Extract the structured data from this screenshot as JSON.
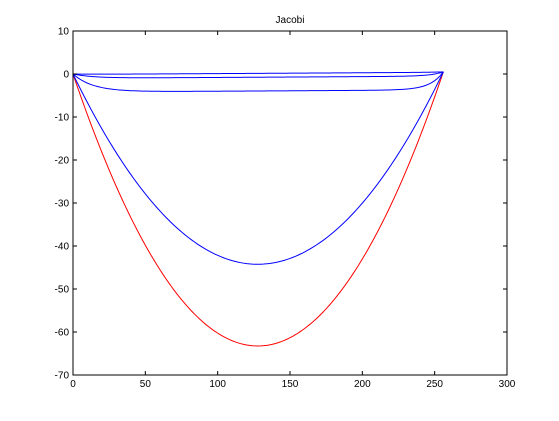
{
  "chart_data": {
    "type": "line",
    "title": "Jacobi",
    "xlabel": "",
    "ylabel": "",
    "xlim": [
      0,
      300
    ],
    "ylim": [
      -70,
      10
    ],
    "xticks": [
      0,
      50,
      100,
      150,
      200,
      250,
      300
    ],
    "yticks": [
      10,
      0,
      -10,
      -20,
      -30,
      -40,
      -50,
      -60,
      -70
    ],
    "grid": false,
    "legend": "none",
    "series": [
      {
        "color": "#ff0000",
        "shape": "parabola",
        "x_end": 256,
        "y_min": -63.5,
        "y_end": 0.5
      },
      {
        "color": "#0000ff",
        "shape": "parabola",
        "x_end": 256,
        "y_min": -44.5,
        "y_end": 0.5
      },
      {
        "color": "#0000ff",
        "shape": "flat",
        "x_end": 256,
        "y_min": -4.2,
        "y_end": 0.5
      },
      {
        "color": "#0000ff",
        "shape": "flat",
        "x_end": 256,
        "y_min": -1.0,
        "y_end": 0.5
      },
      {
        "color": "#0000ff",
        "shape": "flat",
        "x_end": 256,
        "y_min": -0.1,
        "y_end": 0.5
      }
    ]
  }
}
